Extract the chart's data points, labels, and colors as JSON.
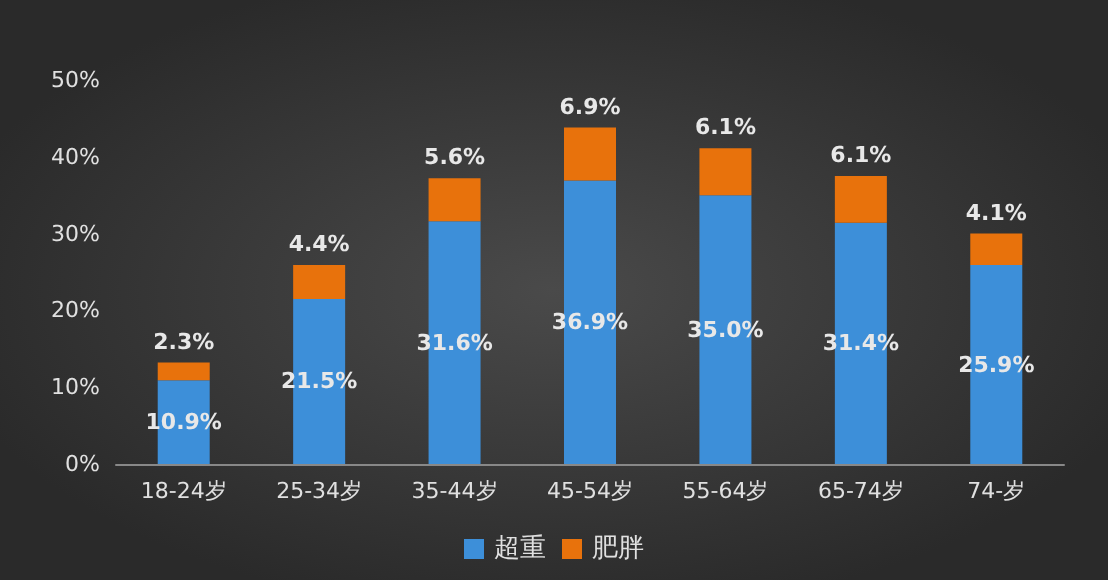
{
  "chart_data": {
    "type": "bar",
    "stacked": true,
    "categories": [
      "18-24岁",
      "25-34岁",
      "35-44岁",
      "45-54岁",
      "55-64岁",
      "65-74岁",
      "74-岁"
    ],
    "series": [
      {
        "name": "超重",
        "color": "#3d8fd9",
        "values": [
          10.9,
          21.5,
          31.6,
          36.9,
          35.0,
          31.4,
          25.9
        ],
        "value_labels": [
          "10.9%",
          "21.5%",
          "31.6%",
          "36.9%",
          "35.0%",
          "31.4%",
          "25.9%"
        ]
      },
      {
        "name": "肥胖",
        "color": "#e8720c",
        "values": [
          2.3,
          4.4,
          5.6,
          6.9,
          6.1,
          6.1,
          4.1
        ],
        "value_labels": [
          "2.3%",
          "4.4%",
          "5.6%",
          "6.9%",
          "6.1%",
          "6.1%",
          "4.1%"
        ]
      }
    ],
    "ylim": [
      0,
      50
    ],
    "yticks": [
      {
        "value": 0,
        "label": "0%"
      },
      {
        "value": 10,
        "label": "10%"
      },
      {
        "value": 20,
        "label": "20%"
      },
      {
        "value": 30,
        "label": "30%"
      },
      {
        "value": 40,
        "label": "40%"
      },
      {
        "value": 50,
        "label": "50%"
      }
    ],
    "grid": false,
    "legend": "bottom"
  }
}
